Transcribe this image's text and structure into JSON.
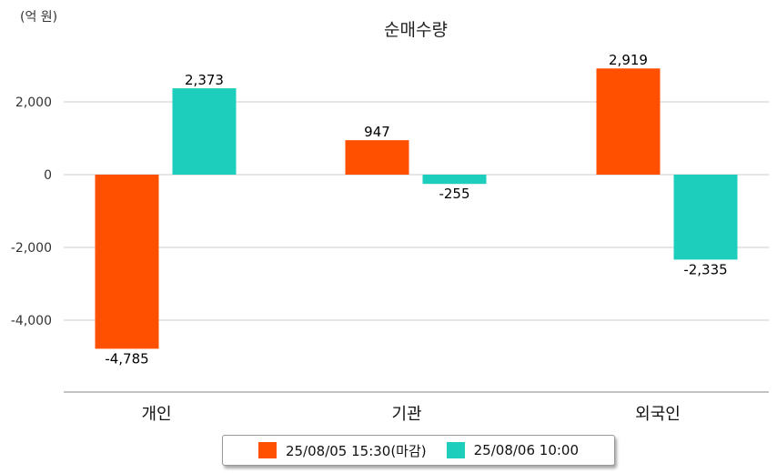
{
  "chart_data": {
    "type": "bar",
    "title": "순매수량",
    "unit_label": "(억 원)",
    "categories": [
      "개인",
      "기관",
      "외국인"
    ],
    "series": [
      {
        "name": "25/08/05 15:30(마감)",
        "color": "#ff5000",
        "values": [
          -4785,
          947,
          2919
        ]
      },
      {
        "name": "25/08/06 10:00",
        "color": "#1ecebc",
        "values": [
          2373,
          -255,
          -2335
        ]
      }
    ],
    "y_ticks": [
      2000,
      0,
      -2000,
      -4000
    ],
    "ylim": [
      -6000,
      3000
    ],
    "grid": true,
    "legend_position": "bottom"
  }
}
